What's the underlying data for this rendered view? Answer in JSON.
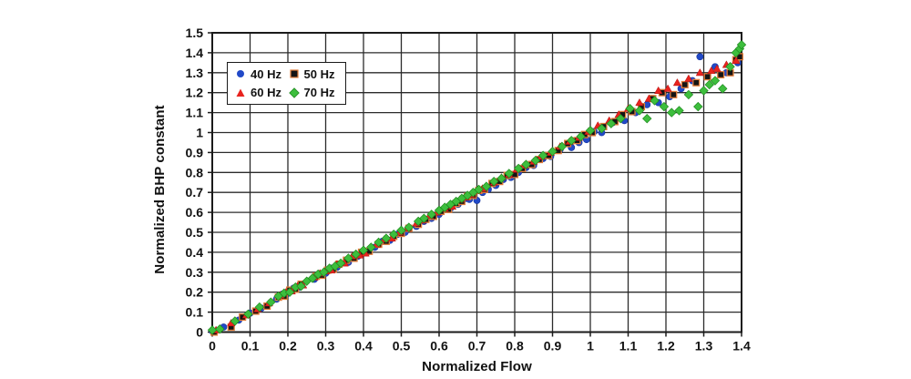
{
  "figure": {
    "background": "#ffffff"
  },
  "chart_data": {
    "type": "scatter",
    "title": "",
    "xlabel": "Normalized Flow",
    "ylabel": "Normalized BHP constant",
    "xlim": [
      0,
      1.4
    ],
    "ylim": [
      0,
      1.5
    ],
    "x_tick_step": 0.1,
    "y_tick_step": 0.1,
    "x_tick_labels": [
      "0",
      "0.1",
      "0.2",
      "0.3",
      "0.4",
      "0.5",
      "0.6",
      "0.7",
      "0.8",
      "0.9",
      "1",
      "1.1",
      "1.2",
      "1.3",
      "1.4"
    ],
    "y_tick_labels": [
      "0",
      "0.1",
      "0.2",
      "0.3",
      "0.4",
      "0.5",
      "0.6",
      "0.7",
      "0.8",
      "0.9",
      "1",
      "1.1",
      "1.2",
      "1.3",
      "1.4",
      "1.5"
    ],
    "grid": "on",
    "grid_color": "#2b2b2b",
    "axis_color": "#1a1a1a",
    "legend_position": "inside-top-left",
    "series": [
      {
        "name": "40 Hz",
        "marker": "circle",
        "color": "#2149C8",
        "edge": "#16349B",
        "points": [
          [
            0,
            0.005
          ],
          [
            0.03,
            0.025
          ],
          [
            0.07,
            0.06
          ],
          [
            0.1,
            0.095
          ],
          [
            0.13,
            0.12
          ],
          [
            0.17,
            0.165
          ],
          [
            0.185,
            0.19
          ],
          [
            0.2,
            0.195
          ],
          [
            0.215,
            0.22
          ],
          [
            0.23,
            0.225
          ],
          [
            0.27,
            0.265
          ],
          [
            0.285,
            0.29
          ],
          [
            0.3,
            0.295
          ],
          [
            0.315,
            0.32
          ],
          [
            0.33,
            0.325
          ],
          [
            0.36,
            0.35
          ],
          [
            0.385,
            0.38
          ],
          [
            0.41,
            0.4
          ],
          [
            0.43,
            0.425
          ],
          [
            0.45,
            0.455
          ],
          [
            0.47,
            0.46
          ],
          [
            0.49,
            0.49
          ],
          [
            0.51,
            0.5
          ],
          [
            0.54,
            0.53
          ],
          [
            0.56,
            0.555
          ],
          [
            0.58,
            0.57
          ],
          [
            0.6,
            0.59
          ],
          [
            0.615,
            0.615
          ],
          [
            0.63,
            0.62
          ],
          [
            0.65,
            0.64
          ],
          [
            0.665,
            0.665
          ],
          [
            0.68,
            0.665
          ],
          [
            0.7,
            0.66
          ],
          [
            0.715,
            0.7
          ],
          [
            0.73,
            0.715
          ],
          [
            0.75,
            0.735
          ],
          [
            0.77,
            0.765
          ],
          [
            0.79,
            0.775
          ],
          [
            0.81,
            0.8
          ],
          [
            0.83,
            0.825
          ],
          [
            0.85,
            0.835
          ],
          [
            0.875,
            0.87
          ],
          [
            0.895,
            0.88
          ],
          [
            0.92,
            0.915
          ],
          [
            0.95,
            0.925
          ],
          [
            0.97,
            0.95
          ],
          [
            0.99,
            0.965
          ],
          [
            1.01,
            1.005
          ],
          [
            1.03,
            1.0
          ],
          [
            1.06,
            1.05
          ],
          [
            1.09,
            1.06
          ],
          [
            1.12,
            1.1
          ],
          [
            1.15,
            1.14
          ],
          [
            1.18,
            1.15
          ],
          [
            1.21,
            1.18
          ],
          [
            1.24,
            1.22
          ],
          [
            1.27,
            1.26
          ],
          [
            1.29,
            1.38
          ],
          [
            1.33,
            1.33
          ],
          [
            1.36,
            1.3
          ],
          [
            1.39,
            1.35
          ]
        ]
      },
      {
        "name": "50 Hz",
        "marker": "square",
        "color": "#141414",
        "edge": "#E07B39",
        "points": [
          [
            0.005,
            0.0
          ],
          [
            0.05,
            0.025
          ],
          [
            0.08,
            0.075
          ],
          [
            0.115,
            0.105
          ],
          [
            0.145,
            0.13
          ],
          [
            0.175,
            0.175
          ],
          [
            0.19,
            0.18
          ],
          [
            0.205,
            0.21
          ],
          [
            0.22,
            0.215
          ],
          [
            0.235,
            0.24
          ],
          [
            0.275,
            0.28
          ],
          [
            0.29,
            0.285
          ],
          [
            0.305,
            0.31
          ],
          [
            0.32,
            0.315
          ],
          [
            0.335,
            0.34
          ],
          [
            0.355,
            0.36
          ],
          [
            0.375,
            0.37
          ],
          [
            0.395,
            0.4
          ],
          [
            0.415,
            0.405
          ],
          [
            0.44,
            0.44
          ],
          [
            0.46,
            0.455
          ],
          [
            0.48,
            0.48
          ],
          [
            0.5,
            0.495
          ],
          [
            0.52,
            0.52
          ],
          [
            0.545,
            0.54
          ],
          [
            0.565,
            0.565
          ],
          [
            0.585,
            0.58
          ],
          [
            0.605,
            0.605
          ],
          [
            0.625,
            0.615
          ],
          [
            0.645,
            0.645
          ],
          [
            0.66,
            0.655
          ],
          [
            0.675,
            0.68
          ],
          [
            0.69,
            0.685
          ],
          [
            0.705,
            0.71
          ],
          [
            0.72,
            0.715
          ],
          [
            0.74,
            0.745
          ],
          [
            0.76,
            0.755
          ],
          [
            0.78,
            0.785
          ],
          [
            0.8,
            0.79
          ],
          [
            0.82,
            0.82
          ],
          [
            0.845,
            0.84
          ],
          [
            0.865,
            0.865
          ],
          [
            0.89,
            0.885
          ],
          [
            0.915,
            0.91
          ],
          [
            0.94,
            0.945
          ],
          [
            0.965,
            0.96
          ],
          [
            0.985,
            0.99
          ],
          [
            1.005,
            1.0
          ],
          [
            1.035,
            1.03
          ],
          [
            1.065,
            1.055
          ],
          [
            1.085,
            1.09
          ],
          [
            1.11,
            1.105
          ],
          [
            1.135,
            1.13
          ],
          [
            1.165,
            1.17
          ],
          [
            1.19,
            1.2
          ],
          [
            1.22,
            1.19
          ],
          [
            1.25,
            1.24
          ],
          [
            1.28,
            1.25
          ],
          [
            1.31,
            1.28
          ],
          [
            1.345,
            1.29
          ],
          [
            1.37,
            1.3
          ],
          [
            1.385,
            1.365
          ],
          [
            1.395,
            1.38
          ]
        ]
      },
      {
        "name": "60 Hz",
        "marker": "triangle",
        "color": "#E8231E",
        "edge": "#B01010",
        "points": [
          [
            0.01,
            0.01
          ],
          [
            0.05,
            0.045
          ],
          [
            0.09,
            0.085
          ],
          [
            0.12,
            0.115
          ],
          [
            0.15,
            0.145
          ],
          [
            0.18,
            0.185
          ],
          [
            0.195,
            0.2
          ],
          [
            0.21,
            0.205
          ],
          [
            0.225,
            0.23
          ],
          [
            0.24,
            0.235
          ],
          [
            0.27,
            0.275
          ],
          [
            0.285,
            0.295
          ],
          [
            0.3,
            0.305
          ],
          [
            0.315,
            0.31
          ],
          [
            0.33,
            0.34
          ],
          [
            0.35,
            0.345
          ],
          [
            0.37,
            0.38
          ],
          [
            0.39,
            0.385
          ],
          [
            0.405,
            0.395
          ],
          [
            0.435,
            0.44
          ],
          [
            0.455,
            0.465
          ],
          [
            0.475,
            0.47
          ],
          [
            0.495,
            0.5
          ],
          [
            0.515,
            0.52
          ],
          [
            0.54,
            0.545
          ],
          [
            0.555,
            0.56
          ],
          [
            0.575,
            0.585
          ],
          [
            0.595,
            0.6
          ],
          [
            0.615,
            0.62
          ],
          [
            0.635,
            0.63
          ],
          [
            0.655,
            0.665
          ],
          [
            0.67,
            0.675
          ],
          [
            0.685,
            0.69
          ],
          [
            0.7,
            0.71
          ],
          [
            0.715,
            0.72
          ],
          [
            0.745,
            0.75
          ],
          [
            0.765,
            0.775
          ],
          [
            0.785,
            0.79
          ],
          [
            0.805,
            0.815
          ],
          [
            0.825,
            0.835
          ],
          [
            0.85,
            0.855
          ],
          [
            0.87,
            0.88
          ],
          [
            0.895,
            0.9
          ],
          [
            0.92,
            0.93
          ],
          [
            0.945,
            0.955
          ],
          [
            0.97,
            0.975
          ],
          [
            0.995,
            1.005
          ],
          [
            1.02,
            1.035
          ],
          [
            1.05,
            1.06
          ],
          [
            1.075,
            1.09
          ],
          [
            1.1,
            1.12
          ],
          [
            1.13,
            1.15
          ],
          [
            1.155,
            1.17
          ],
          [
            1.18,
            1.21
          ],
          [
            1.205,
            1.22
          ],
          [
            1.23,
            1.25
          ],
          [
            1.26,
            1.27
          ],
          [
            1.29,
            1.3
          ],
          [
            1.32,
            1.31
          ],
          [
            1.335,
            1.32
          ],
          [
            1.36,
            1.34
          ],
          [
            1.385,
            1.36
          ]
        ]
      },
      {
        "name": "70 Hz",
        "marker": "diamond",
        "color": "#3DBE3D",
        "edge": "#1F8A1F",
        "points": [
          [
            0.0,
            0.01
          ],
          [
            0.02,
            0.015
          ],
          [
            0.06,
            0.055
          ],
          [
            0.095,
            0.09
          ],
          [
            0.125,
            0.125
          ],
          [
            0.155,
            0.15
          ],
          [
            0.175,
            0.18
          ],
          [
            0.19,
            0.195
          ],
          [
            0.205,
            0.2
          ],
          [
            0.22,
            0.225
          ],
          [
            0.235,
            0.23
          ],
          [
            0.25,
            0.255
          ],
          [
            0.265,
            0.27
          ],
          [
            0.28,
            0.29
          ],
          [
            0.295,
            0.3
          ],
          [
            0.31,
            0.32
          ],
          [
            0.325,
            0.33
          ],
          [
            0.34,
            0.345
          ],
          [
            0.36,
            0.37
          ],
          [
            0.38,
            0.39
          ],
          [
            0.4,
            0.41
          ],
          [
            0.42,
            0.425
          ],
          [
            0.44,
            0.45
          ],
          [
            0.46,
            0.47
          ],
          [
            0.48,
            0.49
          ],
          [
            0.5,
            0.51
          ],
          [
            0.52,
            0.525
          ],
          [
            0.545,
            0.555
          ],
          [
            0.56,
            0.57
          ],
          [
            0.58,
            0.59
          ],
          [
            0.6,
            0.61
          ],
          [
            0.615,
            0.625
          ],
          [
            0.63,
            0.64
          ],
          [
            0.645,
            0.655
          ],
          [
            0.66,
            0.67
          ],
          [
            0.675,
            0.685
          ],
          [
            0.69,
            0.7
          ],
          [
            0.705,
            0.715
          ],
          [
            0.725,
            0.73
          ],
          [
            0.745,
            0.755
          ],
          [
            0.765,
            0.77
          ],
          [
            0.785,
            0.795
          ],
          [
            0.81,
            0.82
          ],
          [
            0.83,
            0.84
          ],
          [
            0.855,
            0.86
          ],
          [
            0.875,
            0.885
          ],
          [
            0.9,
            0.905
          ],
          [
            0.925,
            0.93
          ],
          [
            0.95,
            0.96
          ],
          [
            0.975,
            0.98
          ],
          [
            1.0,
            1.01
          ],
          [
            1.03,
            1.02
          ],
          [
            1.055,
            1.045
          ],
          [
            1.08,
            1.07
          ],
          [
            1.105,
            1.12
          ],
          [
            1.13,
            1.11
          ],
          [
            1.15,
            1.07
          ],
          [
            1.17,
            1.16
          ],
          [
            1.195,
            1.13
          ],
          [
            1.215,
            1.1
          ],
          [
            1.235,
            1.11
          ],
          [
            1.26,
            1.19
          ],
          [
            1.285,
            1.13
          ],
          [
            1.3,
            1.21
          ],
          [
            1.315,
            1.24
          ],
          [
            1.33,
            1.26
          ],
          [
            1.35,
            1.22
          ],
          [
            1.37,
            1.33
          ],
          [
            1.385,
            1.4
          ],
          [
            1.395,
            1.42
          ],
          [
            1.4,
            1.44
          ]
        ]
      }
    ]
  }
}
